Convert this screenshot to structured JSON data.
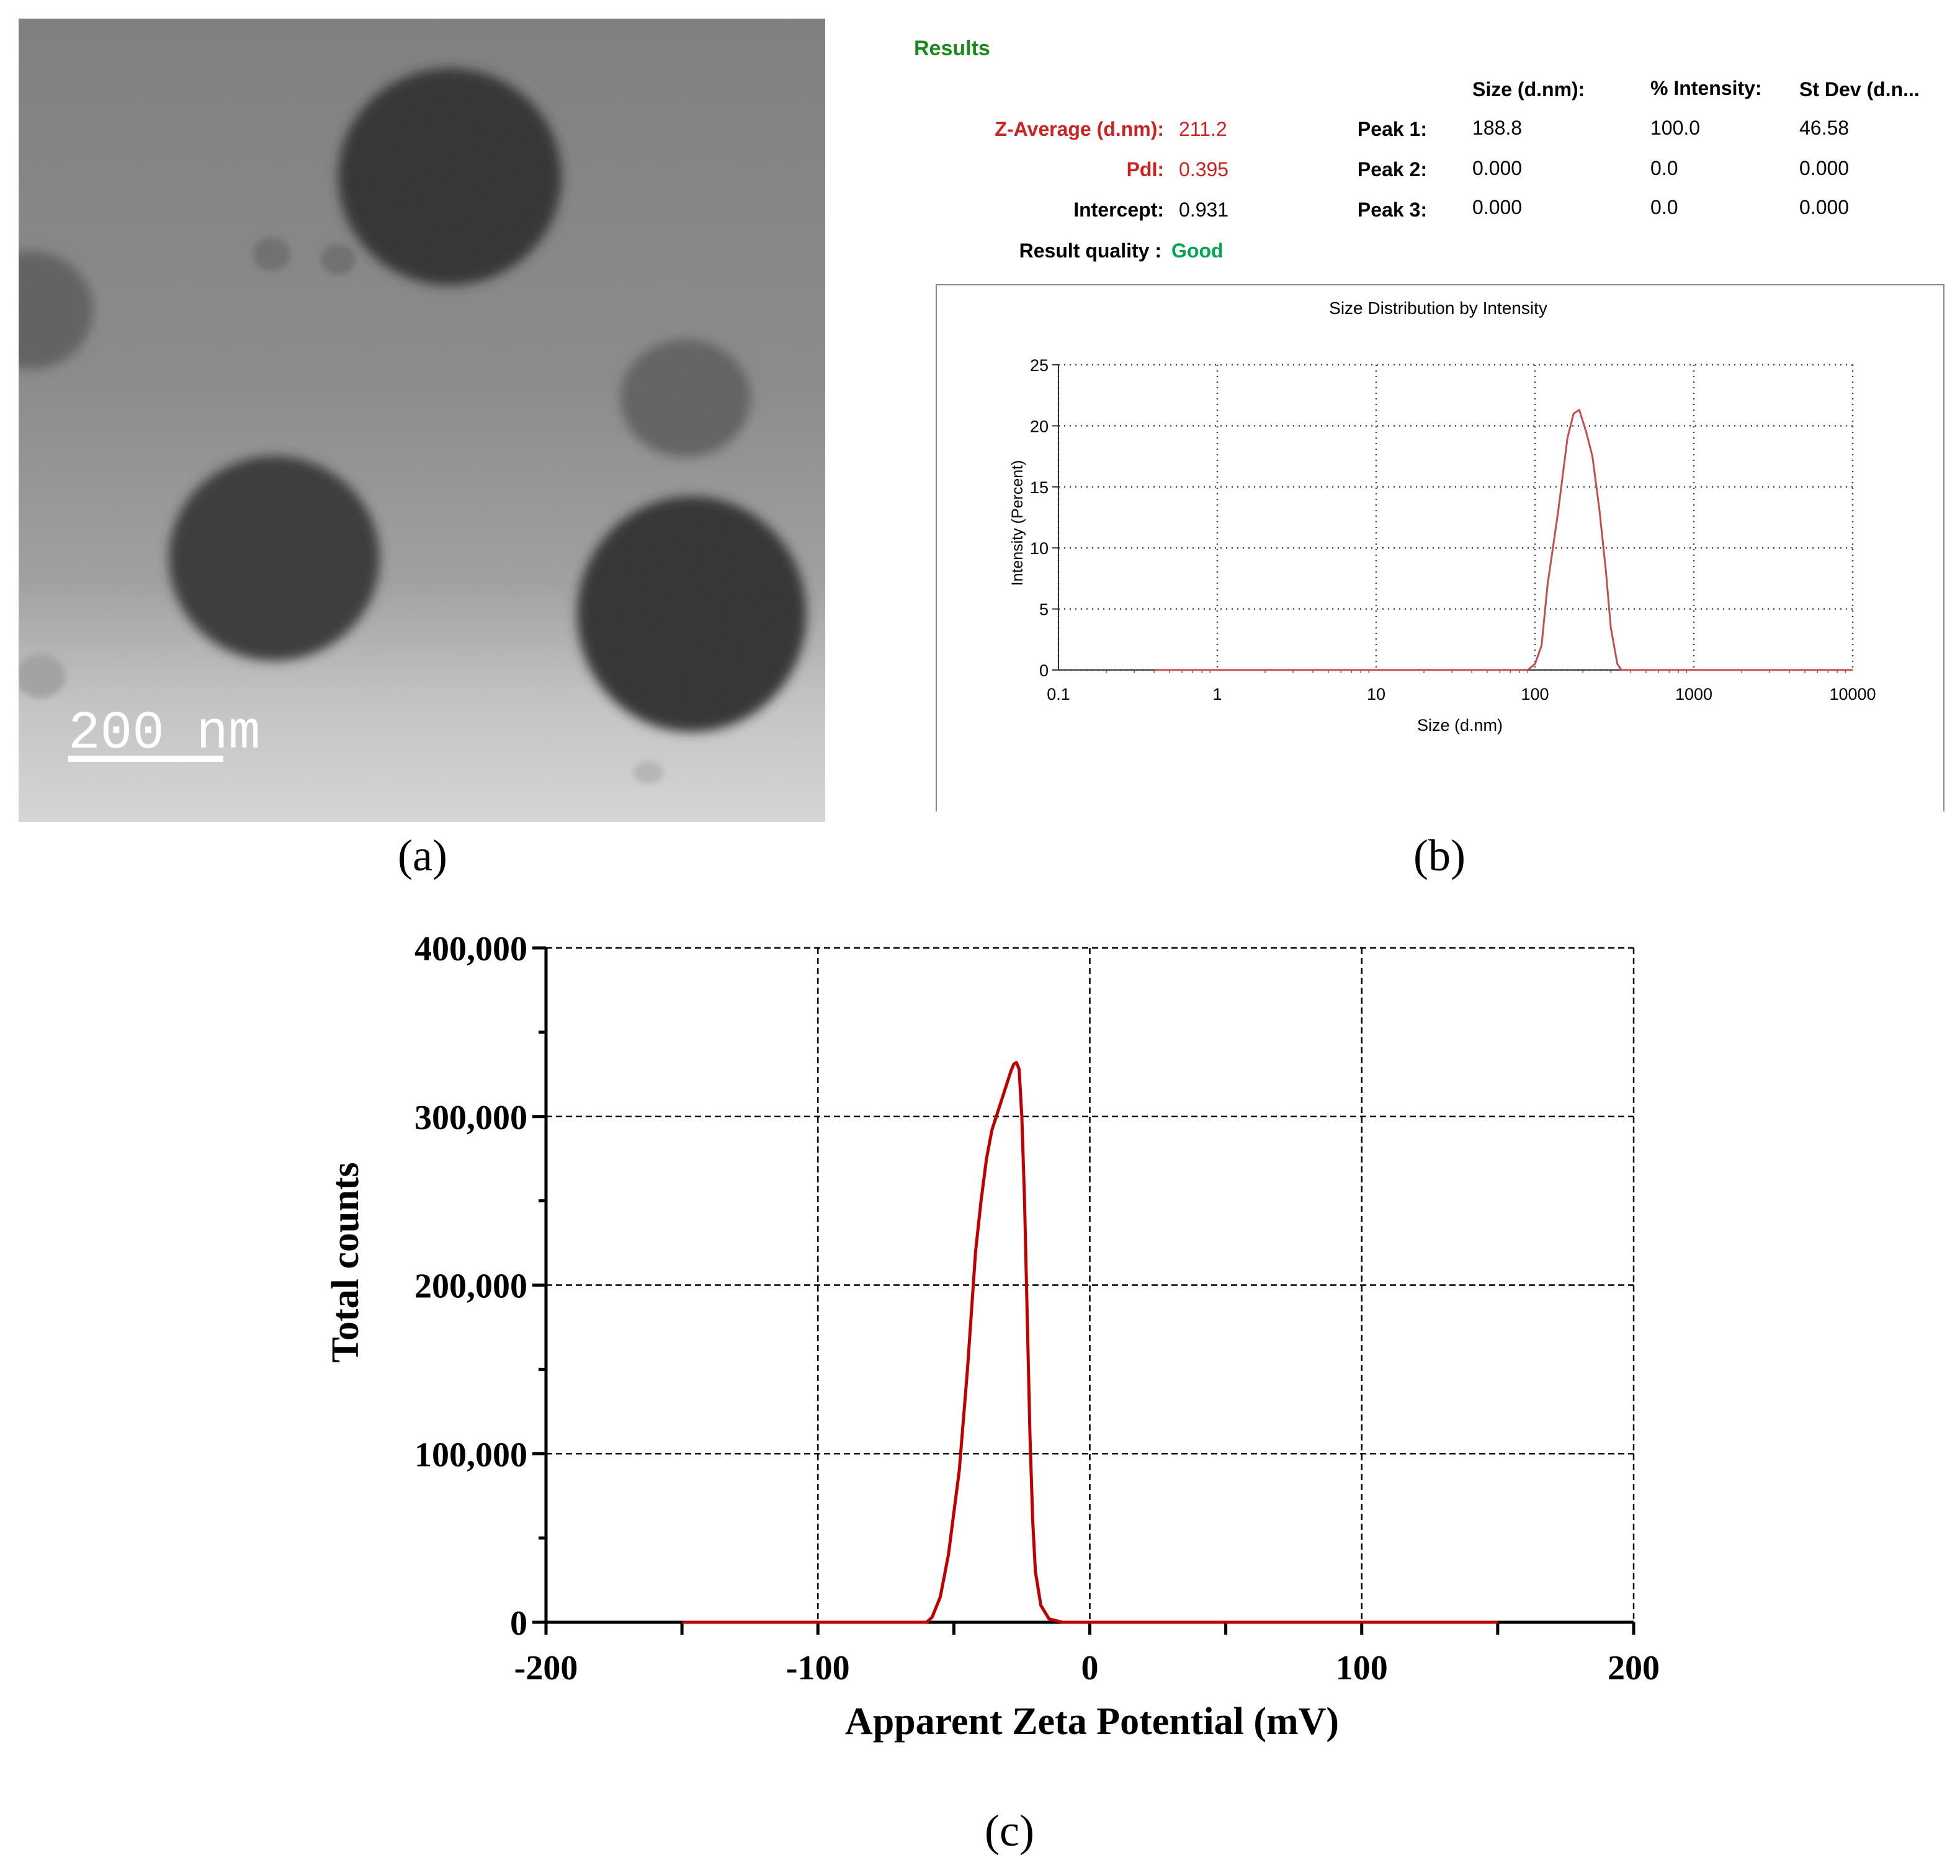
{
  "panel_labels": {
    "a": "(a)",
    "b": "(b)",
    "c": "(c)"
  },
  "tem": {
    "scale_bar_label": "200 nm"
  },
  "results": {
    "title": "Results",
    "headers": {
      "size": "Size (d.nm):",
      "intensity": "% Intensity:",
      "stdev": "St Dev (d.n..."
    },
    "z_average": {
      "label": "Z-Average (d.nm):",
      "value": "211.2"
    },
    "pdi": {
      "label": "PdI:",
      "value": "0.395"
    },
    "intercept": {
      "label": "Intercept:",
      "value": "0.931"
    },
    "quality": {
      "label": "Result quality :",
      "value": "Good"
    },
    "peaks": [
      {
        "label": "Peak 1:",
        "size": "188.8",
        "intensity": "100.0",
        "stdev": "46.58"
      },
      {
        "label": "Peak 2:",
        "size": "0.000",
        "intensity": "0.0",
        "stdev": "0.000"
      },
      {
        "label": "Peak 3:",
        "size": "0.000",
        "intensity": "0.0",
        "stdev": "0.000"
      }
    ]
  },
  "chart_data": [
    {
      "type": "line",
      "title": "Size Distribution by Intensity",
      "xlabel": "Size (d.nm)",
      "ylabel": "Intensity (Percent)",
      "xscale": "log",
      "xlim": [
        0.1,
        10000
      ],
      "ylim": [
        0,
        25
      ],
      "x_ticks": [
        "0.1",
        "1",
        "10",
        "100",
        "1000",
        "10000"
      ],
      "y_ticks": [
        "0",
        "5",
        "10",
        "15",
        "20",
        "25"
      ],
      "grid": true,
      "grid_style": "dotted",
      "line_color": "#c0504d",
      "series": [
        {
          "x": [
            0.4,
            1,
            10,
            50,
            90,
            100,
            110,
            120,
            140,
            160,
            175,
            190,
            210,
            230,
            255,
            280,
            300,
            330,
            350,
            400,
            1000,
            10000
          ],
          "y": [
            0,
            0,
            0,
            0,
            0,
            0.5,
            2,
            7,
            13,
            19,
            21,
            21.3,
            19.5,
            17.5,
            13,
            8,
            3.5,
            0.5,
            0,
            0,
            0,
            0
          ]
        }
      ]
    },
    {
      "type": "line",
      "xlabel": "Apparent Zeta Potential (mV)",
      "ylabel": "Total counts",
      "xlim": [
        -200,
        200
      ],
      "ylim": [
        0,
        400000
      ],
      "x_ticks": [
        "-200",
        "-100",
        "0",
        "100",
        "200"
      ],
      "y_ticks": [
        "0",
        "100,000",
        "200,000",
        "300,000",
        "400,000"
      ],
      "grid": true,
      "grid_style": "dashed",
      "line_color": "#c00000",
      "series": [
        {
          "x": [
            -150,
            -90,
            -60,
            -58,
            -55,
            -52,
            -48,
            -45,
            -42,
            -40,
            -38,
            -36,
            -34,
            -32,
            -30,
            -29,
            -28,
            -27,
            -26,
            -25,
            -24,
            -23,
            -22,
            -21,
            -20,
            -18,
            -15,
            -10,
            0,
            15,
            150
          ],
          "y": [
            0,
            0,
            0,
            3000,
            15000,
            40000,
            90000,
            150000,
            220000,
            250000,
            275000,
            292000,
            302000,
            312000,
            322000,
            327000,
            331000,
            332000,
            328000,
            300000,
            250000,
            180000,
            110000,
            60000,
            30000,
            10000,
            2000,
            0,
            0,
            0,
            0
          ]
        }
      ]
    }
  ]
}
